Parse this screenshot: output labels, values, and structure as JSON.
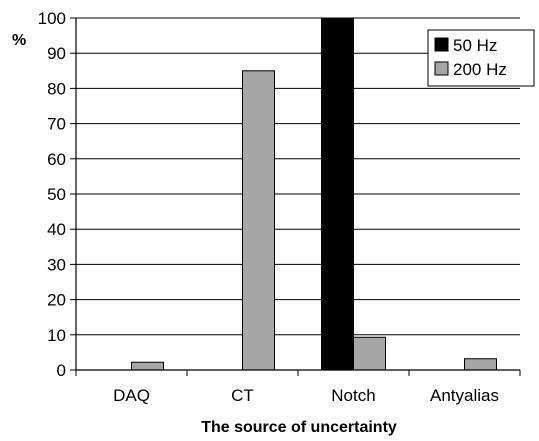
{
  "chart_data": {
    "type": "bar",
    "xlabel": "The source of uncertainty",
    "ylabel": "%",
    "ylim": [
      0,
      100
    ],
    "yticks": [
      0,
      10,
      20,
      30,
      40,
      50,
      60,
      70,
      80,
      90,
      100
    ],
    "grid": true,
    "legend_position": "top-right",
    "categories": [
      "DAQ",
      "CT",
      "Notch",
      "Antyalias"
    ],
    "series": [
      {
        "name": "50 Hz",
        "color": "#000000",
        "values": [
          0,
          0,
          100,
          0
        ]
      },
      {
        "name": "200 Hz",
        "color": "#a6a6a6",
        "values": [
          2.2,
          85,
          9.3,
          3.2
        ]
      }
    ]
  }
}
